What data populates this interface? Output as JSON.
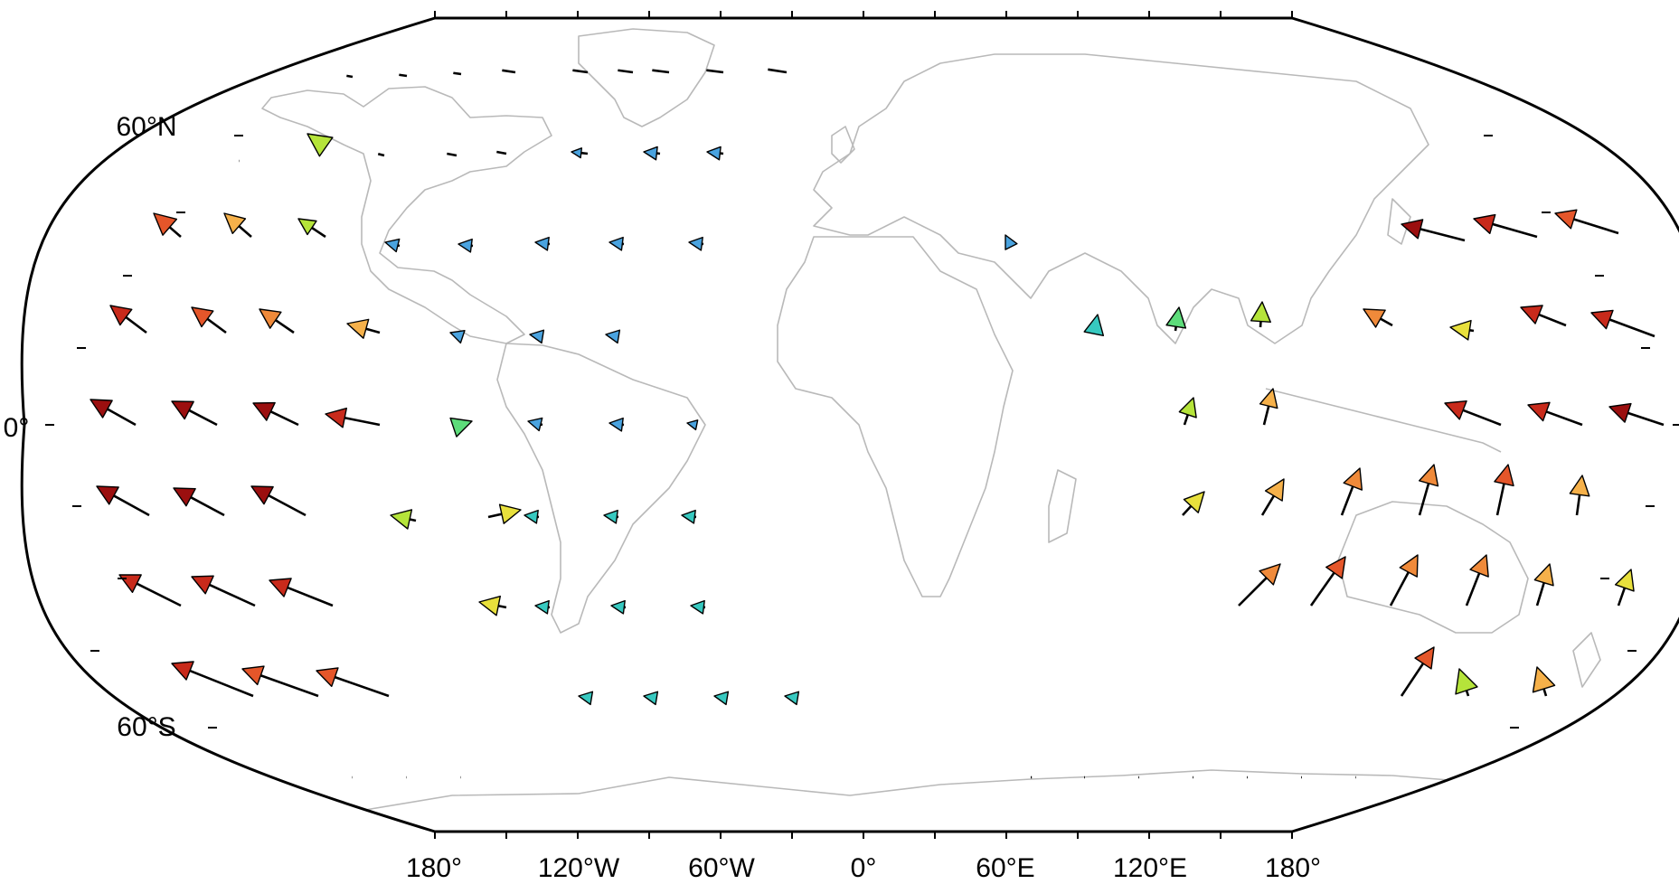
{
  "map": {
    "projection": "robinson",
    "central_meridian_label": "0°",
    "colors": {
      "coastline": "#b9b9b9",
      "frame": "#000000",
      "arrow_outline": "#000000",
      "palette": [
        "#4aa3df",
        "#37c9c0",
        "#5ddc7a",
        "#b5e43a",
        "#e8e03c",
        "#f6b14a",
        "#f08a3a",
        "#e5562a",
        "#c82a1b",
        "#9b0f0f"
      ]
    },
    "bottom_labels": [
      "180°",
      "120°W",
      "60°W",
      "0°",
      "60°E",
      "120°E",
      "180°"
    ],
    "left_labels": [
      "60°N",
      "0°",
      "60°S"
    ]
  }
}
